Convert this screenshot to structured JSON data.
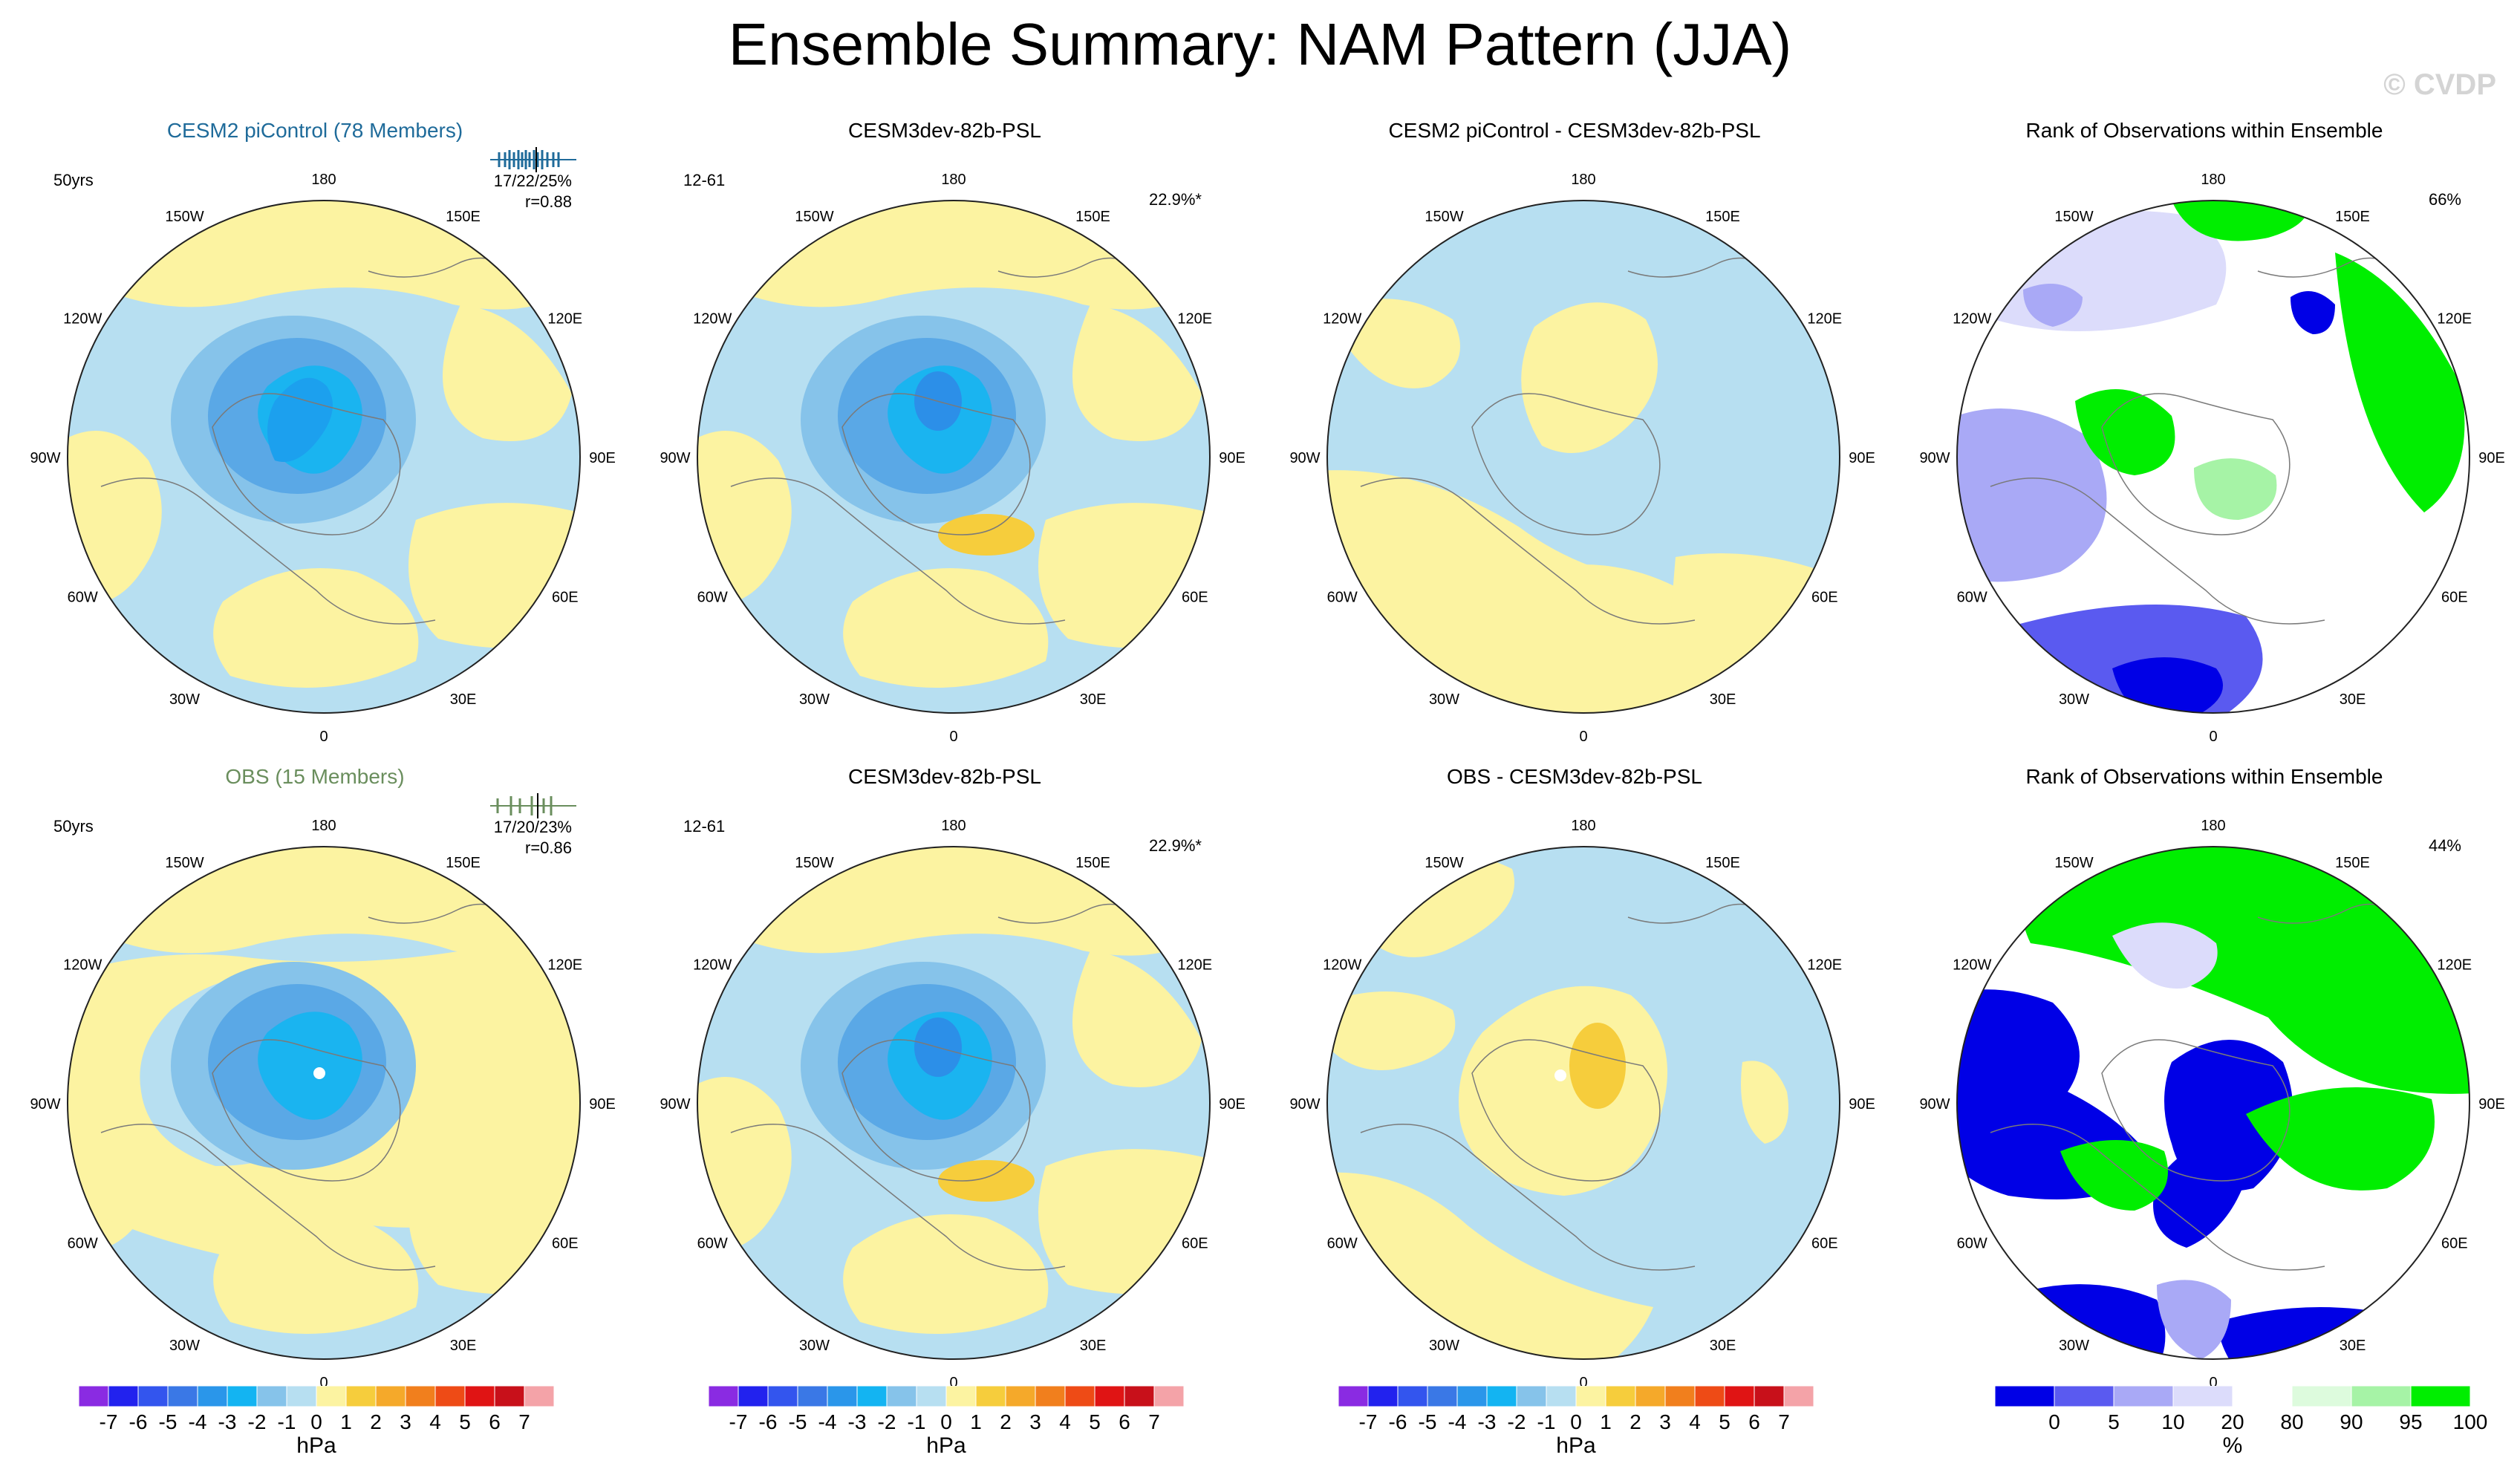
{
  "title": "Ensemble Summary: NAM Pattern (JJA)",
  "watermark": "© CVDP",
  "colors": {
    "ocean_blue": "#b7dff1",
    "pale_yellow": "#fcf3a1",
    "blue_mid": "#86c3ea",
    "blue_strong": "#5aa8e6",
    "cyan_core": "#1ab4f0",
    "deep_core": "#2c8fe8",
    "orange": "#f6cd3c",
    "rank_green": "#00ee00",
    "rank_blue": "#0000e6"
  },
  "lon_labels": [
    "180",
    "150E",
    "120E",
    "90E",
    "60E",
    "30E",
    "0",
    "30W",
    "60W",
    "90W",
    "120W",
    "150W"
  ],
  "panels": {
    "r1c1": {
      "title": "CESM2 piControl (78 Members)",
      "title_color": "#1f6b9a",
      "left": "50yrs",
      "stats1": "17/22/25%",
      "stats2": "r=0.88"
    },
    "r1c2": {
      "title": "CESM3dev-82b-PSL",
      "left": "12-61",
      "right": "22.9%*"
    },
    "r1c3": {
      "title": "CESM2 piControl - CESM3dev-82b-PSL"
    },
    "r1c4": {
      "title": "Rank of Observations within Ensemble",
      "right": "66%"
    },
    "r2c1": {
      "title": "OBS (15 Members)",
      "title_color": "#6a8e5d",
      "left": "50yrs",
      "stats1": "17/20/23%",
      "stats2": "r=0.86"
    },
    "r2c2": {
      "title": "CESM3dev-82b-PSL",
      "left": "12-61",
      "right": "22.9%*"
    },
    "r2c3": {
      "title": "OBS - CESM3dev-82b-PSL"
    },
    "r2c4": {
      "title": "Rank of Observations within Ensemble",
      "right": "44%"
    }
  },
  "chart_data": [
    {
      "type": "heatmap",
      "panel": "r1c1",
      "title": "CESM2 piControl (78 Members)",
      "annotations": [
        "50yrs",
        "17/22/25%",
        "r=0.88"
      ],
      "projection": "north polar stereographic",
      "colorbar": "hPa",
      "range_hPa": [
        -7,
        7
      ],
      "min_core_hPa": -4
    },
    {
      "type": "heatmap",
      "panel": "r1c2",
      "title": "CESM3dev-82b-PSL",
      "annotations": [
        "12-61",
        "22.9%*"
      ],
      "projection": "north polar stereographic",
      "colorbar": "hPa",
      "range_hPa": [
        -7,
        7
      ],
      "min_core_hPa": -4,
      "max_core_hPa": 2
    },
    {
      "type": "heatmap",
      "panel": "r1c3",
      "title": "CESM2 piControl - CESM3dev-82b-PSL",
      "projection": "north polar stereographic",
      "colorbar": "hPa",
      "range_hPa": [
        -1,
        1
      ]
    },
    {
      "type": "heatmap",
      "panel": "r1c4",
      "title": "Rank of Observations within Ensemble",
      "annotations": [
        "66%"
      ],
      "colorbar": "%"
    },
    {
      "type": "heatmap",
      "panel": "r2c1",
      "title": "OBS (15 Members)",
      "annotations": [
        "50yrs",
        "17/20/23%",
        "r=0.86"
      ],
      "projection": "north polar stereographic",
      "colorbar": "hPa",
      "range_hPa": [
        -7,
        7
      ],
      "min_core_hPa": -3
    },
    {
      "type": "heatmap",
      "panel": "r2c2",
      "title": "CESM3dev-82b-PSL",
      "annotations": [
        "12-61",
        "22.9%*"
      ],
      "projection": "north polar stereographic",
      "colorbar": "hPa",
      "range_hPa": [
        -7,
        7
      ],
      "min_core_hPa": -4,
      "max_core_hPa": 2
    },
    {
      "type": "heatmap",
      "panel": "r2c3",
      "title": "OBS - CESM3dev-82b-PSL",
      "projection": "north polar stereographic",
      "colorbar": "hPa",
      "range_hPa": [
        -2,
        2
      ]
    },
    {
      "type": "heatmap",
      "panel": "r2c4",
      "title": "Rank of Observations within Ensemble",
      "annotations": [
        "44%"
      ],
      "colorbar": "%"
    }
  ],
  "colorbars": {
    "hpa": {
      "unit": "hPa",
      "labels": [
        "-7",
        "-6",
        "-5",
        "-4",
        "-3",
        "-2",
        "-1",
        "0",
        "1",
        "2",
        "3",
        "4",
        "5",
        "6",
        "7"
      ],
      "colors": [
        "#8a2be2",
        "#2222ee",
        "#3355ee",
        "#3a78e6",
        "#2a96ea",
        "#13b4f2",
        "#86c3ea",
        "#b7dff1",
        "#fcf3a1",
        "#f6cd3c",
        "#f5a92a",
        "#f17f1d",
        "#ee4b16",
        "#e01414",
        "#c8101a",
        "#f4a3a8"
      ]
    },
    "rank": {
      "unit": "%",
      "labels": [
        "0",
        "5",
        "10",
        "20",
        "80",
        "90",
        "95",
        "100"
      ],
      "colors": [
        "#0000e6",
        "#5a5af0",
        "#a9a9f6",
        "#dcdcfb",
        "#ffffff",
        "#ddfbdd",
        "#a6f3a6",
        "#00ee00"
      ]
    }
  }
}
